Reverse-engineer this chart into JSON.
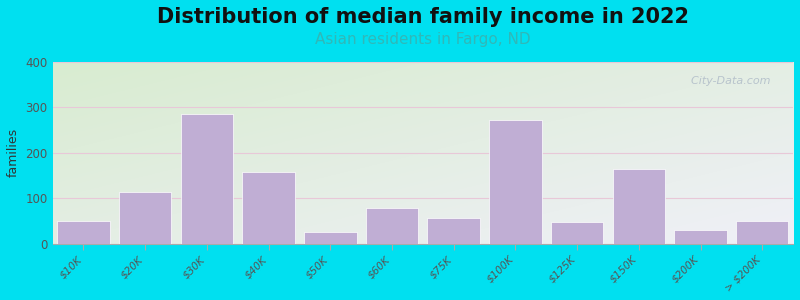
{
  "title": "Distribution of median family income in 2022",
  "subtitle": "Asian residents in Fargo, ND",
  "ylabel": "families",
  "categories": [
    "$10K",
    "$20K",
    "$30K",
    "$40K",
    "$50K",
    "$60K",
    "$75K",
    "$100K",
    "$125K",
    "$150K",
    "$200K",
    "> $200K"
  ],
  "values": [
    50,
    113,
    285,
    158,
    25,
    78,
    57,
    272,
    47,
    165,
    30,
    50
  ],
  "bar_color": "#c0aed4",
  "bar_edge_color": "#ffffff",
  "background_outer": "#00e0f0",
  "background_plot_top_left": "#d8ecd0",
  "background_plot_right": "#f0f0f8",
  "grid_color": "#e8c8d8",
  "ylim": [
    0,
    400
  ],
  "yticks": [
    0,
    100,
    200,
    300,
    400
  ],
  "title_fontsize": 15,
  "subtitle_fontsize": 11,
  "subtitle_color": "#30b8b8",
  "ylabel_fontsize": 9,
  "tick_label_fontsize": 7.5,
  "watermark_text": "  City-Data.com",
  "watermark_color": "#b0bcc8"
}
